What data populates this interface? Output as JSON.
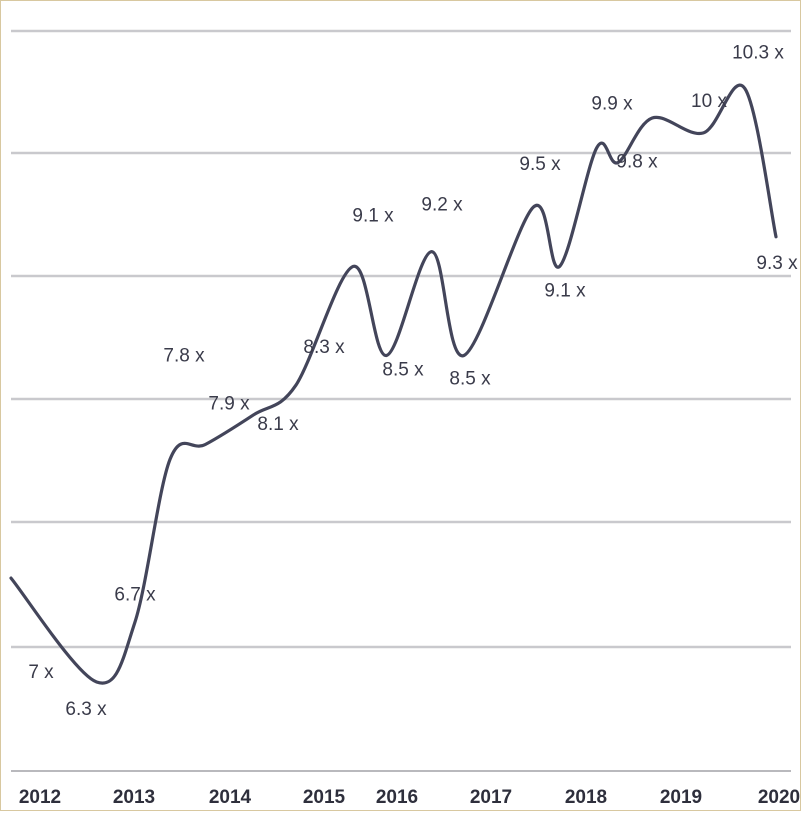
{
  "chart_data": {
    "type": "line",
    "title": "",
    "xlabel": "",
    "ylabel": "",
    "x_tick_labels": [
      "2012",
      "2013",
      "2014",
      "2015",
      "2016",
      "2017",
      "2018",
      "2019",
      "2020"
    ],
    "ylim": [
      5.7,
      10.7
    ],
    "grid": true,
    "legend": "none",
    "series_color": "#43455a",
    "series": [
      {
        "points": [
          {
            "x": 2011.97,
            "y": 7.0
          },
          {
            "x": 2012.82,
            "y": 6.3
          },
          {
            "x": 2013.2,
            "y": 6.7
          },
          {
            "x": 2013.55,
            "y": 7.8
          },
          {
            "x": 2013.9,
            "y": 7.9
          },
          {
            "x": 2014.38,
            "y": 8.1
          },
          {
            "x": 2014.8,
            "y": 8.3
          },
          {
            "x": 2015.37,
            "y": 9.1
          },
          {
            "x": 2015.7,
            "y": 8.5
          },
          {
            "x": 2016.15,
            "y": 9.2
          },
          {
            "x": 2016.47,
            "y": 8.5
          },
          {
            "x": 2017.16,
            "y": 9.5
          },
          {
            "x": 2017.42,
            "y": 9.1
          },
          {
            "x": 2017.79,
            "y": 9.9
          },
          {
            "x": 2018.0,
            "y": 9.8
          },
          {
            "x": 2018.34,
            "y": 10.1
          },
          {
            "x": 2018.85,
            "y": 10.0
          },
          {
            "x": 2019.26,
            "y": 10.3
          },
          {
            "x": 2019.57,
            "y": 9.3
          }
        ],
        "data_labels": [
          {
            "text": "7 x",
            "x": 2011.97,
            "y": 7.0
          },
          {
            "text": "6.3 x",
            "x": 2012.82,
            "y": 6.3
          },
          {
            "text": "6.7 x",
            "x": 2013.2,
            "y": 6.7
          },
          {
            "text": "7.8 x",
            "x": 2013.55,
            "y": 7.8
          },
          {
            "text": "7.9 x",
            "x": 2013.9,
            "y": 7.9
          },
          {
            "text": "8.1 x",
            "x": 2014.38,
            "y": 8.1
          },
          {
            "text": "8.3 x",
            "x": 2014.8,
            "y": 8.3
          },
          {
            "text": "9.1 x",
            "x": 2015.37,
            "y": 9.1
          },
          {
            "text": "8.5 x",
            "x": 2015.7,
            "y": 8.5
          },
          {
            "text": "9.2 x",
            "x": 2016.15,
            "y": 9.2
          },
          {
            "text": "8.5 x",
            "x": 2016.47,
            "y": 8.5
          },
          {
            "text": "9.5 x",
            "x": 2017.16,
            "y": 9.5
          },
          {
            "text": "9.1 x",
            "x": 2017.42,
            "y": 9.1
          },
          {
            "text": "9.9 x",
            "x": 2017.79,
            "y": 9.9
          },
          {
            "text": "9.8 x",
            "x": 2018.0,
            "y": 9.8
          },
          {
            "text": "10 x",
            "x": 2018.85,
            "y": 10.0
          },
          {
            "text": "10.3 x",
            "x": 2019.26,
            "y": 10.3
          },
          {
            "text": "9.3 x",
            "x": 2019.57,
            "y": 9.3
          }
        ]
      }
    ]
  }
}
